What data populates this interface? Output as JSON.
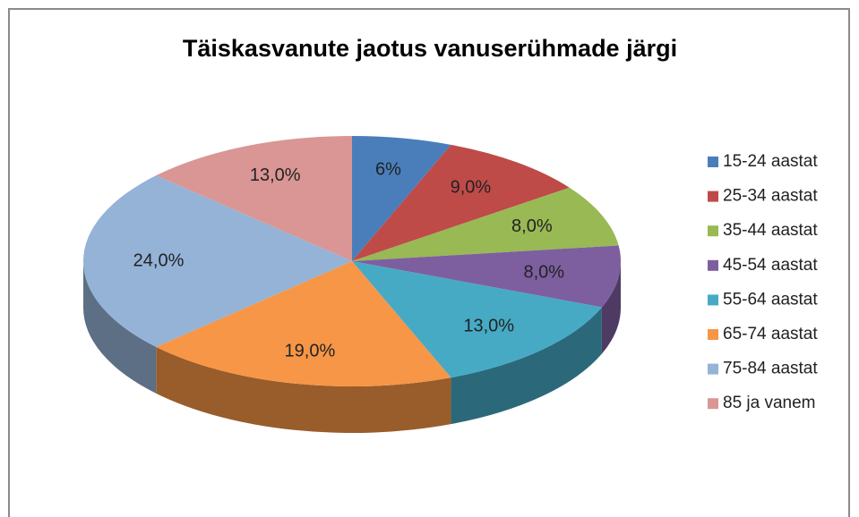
{
  "chart_data": {
    "type": "pie3d",
    "title": "Täiskasvanute jaotus vanuserühmade järgi",
    "categories": [
      "15-24 aastat",
      "25-34 aastat",
      "35-44 aastat",
      "45-54 aastat",
      "55-64 aastat",
      "65-74 aastat",
      "75-84 aastat",
      "85 ja vanem"
    ],
    "values": [
      6,
      9,
      8,
      8,
      13,
      19,
      24,
      13
    ],
    "value_labels": [
      "6%",
      "9,0%",
      "8,0%",
      "8,0%",
      "13,0%",
      "19,0%",
      "24,0%",
      "13,0%"
    ],
    "colors": [
      "#4a7ebb",
      "#be4b48",
      "#98b954",
      "#7d5fa0",
      "#46aac5",
      "#f79646",
      "#95b3d7",
      "#d99694"
    ],
    "legend": "right"
  }
}
